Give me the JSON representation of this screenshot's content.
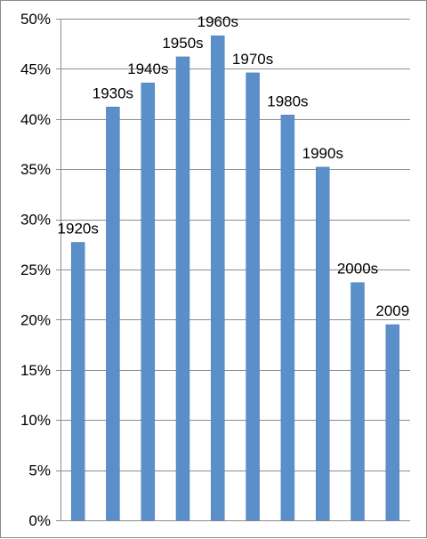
{
  "chart_data": {
    "type": "bar",
    "title": "",
    "xlabel": "",
    "ylabel": "",
    "categories": [
      "1920s",
      "1930s",
      "1940s",
      "1950s",
      "1960s",
      "1970s",
      "1980s",
      "1990s",
      "2000s",
      "2009"
    ],
    "values": [
      27.7,
      41.2,
      43.6,
      46.2,
      48.3,
      44.6,
      40.4,
      35.2,
      23.7,
      19.5
    ],
    "data_labels": [
      "1920s",
      "1930s",
      "1940s",
      "1950s",
      "1960s",
      "1970s",
      "1980s",
      "1990s",
      "2000s",
      "2009"
    ],
    "ylim": [
      0,
      50
    ],
    "y_ticks": [
      0,
      5,
      10,
      15,
      20,
      25,
      30,
      35,
      40,
      45,
      50
    ],
    "y_tick_labels": [
      "0%",
      "5%",
      "10%",
      "15%",
      "20%",
      "25%",
      "30%",
      "35%",
      "40%",
      "45%",
      "50%"
    ],
    "grid": true,
    "legend": "none",
    "colors": {
      "bar": "#5b8fca",
      "bar_edge": "#4a7db8",
      "grid": "#8c8c8c",
      "axis": "#8c8c8c",
      "frame": "#8c8c8c"
    }
  }
}
